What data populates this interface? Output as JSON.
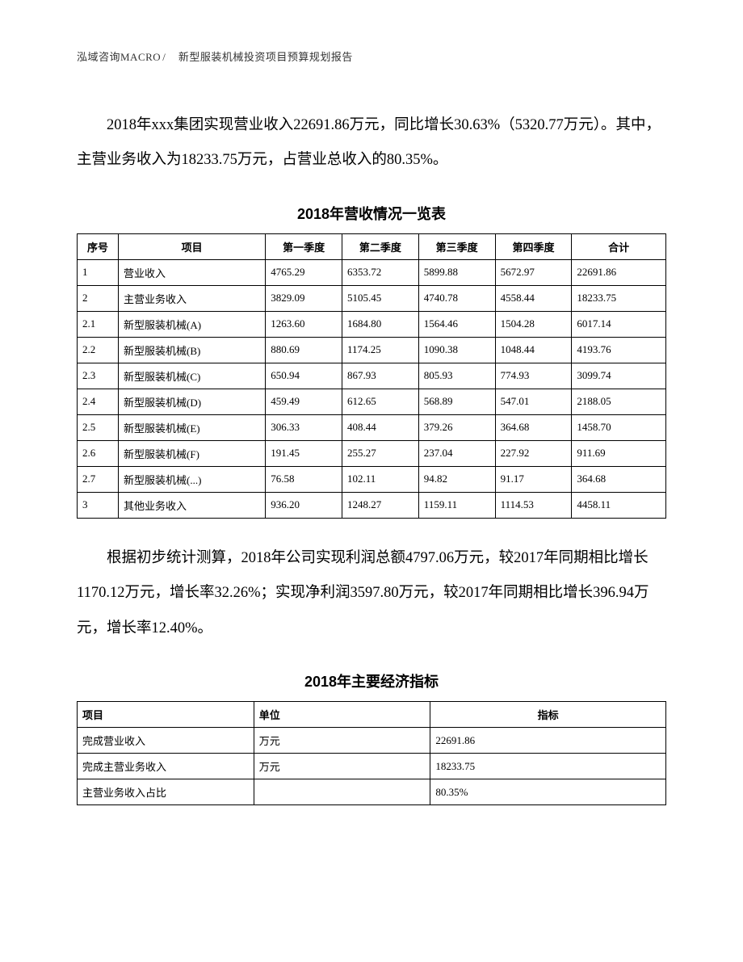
{
  "header": {
    "company": "泓域咨询MACRO",
    "separator": "/",
    "title": "新型服装机械投资项目预算规划报告"
  },
  "para1": "2018年xxx集团实现营业收入22691.86万元，同比增长30.63%（5320.77万元）。其中，主营业务收入为18233.75万元，占营业总收入的80.35%。",
  "table1": {
    "title": "2018年营收情况一览表",
    "headers": [
      "序号",
      "项目",
      "第一季度",
      "第二季度",
      "第三季度",
      "第四季度",
      "合计"
    ],
    "rows": [
      [
        "1",
        "营业收入",
        "4765.29",
        "6353.72",
        "5899.88",
        "5672.97",
        "22691.86"
      ],
      [
        "2",
        "主营业务收入",
        "3829.09",
        "5105.45",
        "4740.78",
        "4558.44",
        "18233.75"
      ],
      [
        "2.1",
        "新型服装机械(A)",
        "1263.60",
        "1684.80",
        "1564.46",
        "1504.28",
        "6017.14"
      ],
      [
        "2.2",
        "新型服装机械(B)",
        "880.69",
        "1174.25",
        "1090.38",
        "1048.44",
        "4193.76"
      ],
      [
        "2.3",
        "新型服装机械(C)",
        "650.94",
        "867.93",
        "805.93",
        "774.93",
        "3099.74"
      ],
      [
        "2.4",
        "新型服装机械(D)",
        "459.49",
        "612.65",
        "568.89",
        "547.01",
        "2188.05"
      ],
      [
        "2.5",
        "新型服装机械(E)",
        "306.33",
        "408.44",
        "379.26",
        "364.68",
        "1458.70"
      ],
      [
        "2.6",
        "新型服装机械(F)",
        "191.45",
        "255.27",
        "237.04",
        "227.92",
        "911.69"
      ],
      [
        "2.7",
        "新型服装机械(...)",
        "76.58",
        "102.11",
        "94.82",
        "91.17",
        "364.68"
      ],
      [
        "3",
        "其他业务收入",
        "936.20",
        "1248.27",
        "1159.11",
        "1114.53",
        "4458.11"
      ]
    ]
  },
  "para2": "根据初步统计测算，2018年公司实现利润总额4797.06万元，较2017年同期相比增长1170.12万元，增长率32.26%；实现净利润3597.80万元，较2017年同期相比增长396.94万元，增长率12.40%。",
  "table2": {
    "title": "2018年主要经济指标",
    "headers": [
      "项目",
      "单位",
      "指标"
    ],
    "rows": [
      [
        "完成营业收入",
        "万元",
        "22691.86"
      ],
      [
        "完成主营业务收入",
        "万元",
        "18233.75"
      ],
      [
        "主营业务收入占比",
        "",
        "80.35%"
      ]
    ]
  }
}
